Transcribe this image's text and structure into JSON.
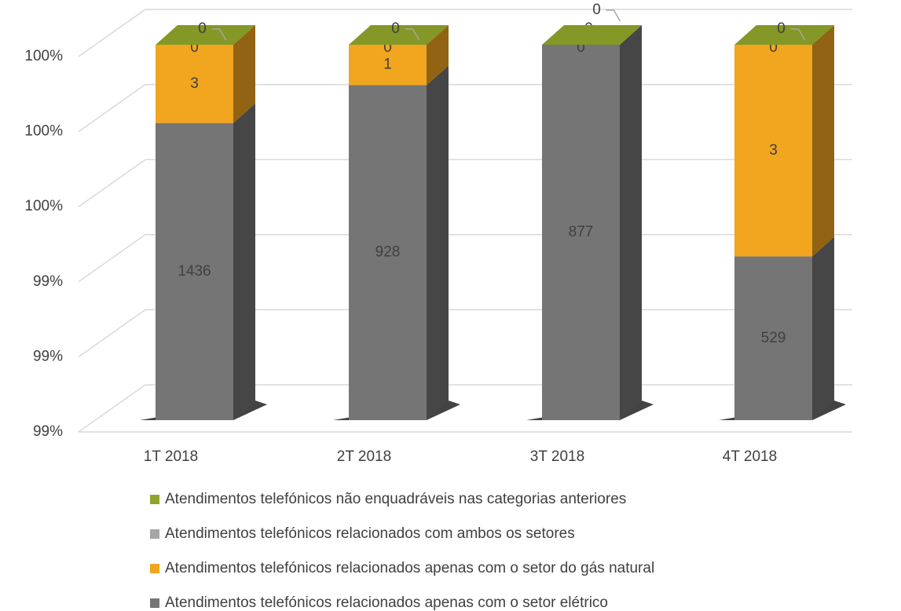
{
  "chart_data": {
    "type": "bar",
    "stacking": "percent",
    "categories": [
      "1T 2018",
      "2T 2018",
      "3T 2018",
      "4T 2018"
    ],
    "series": [
      {
        "name": "Atendimentos telefónicos relacionados apenas com o setor elétrico",
        "color": "#757575",
        "values": [
          1436,
          928,
          877,
          529
        ]
      },
      {
        "name": "Atendimentos telefónicos relacionados apenas com o setor do gás natural",
        "color": "#f2a51e",
        "values": [
          3,
          1,
          0,
          3
        ]
      },
      {
        "name": "Atendimentos telefónicos relacionados com ambos os setores",
        "color": "#a6a6a6",
        "values": [
          0,
          0,
          0,
          0
        ]
      },
      {
        "name": "Atendimentos telefónicos não enquadráveis nas categorias anteriores",
        "color": "#8fa52b",
        "values": [
          0,
          0,
          0,
          0
        ]
      }
    ],
    "ylim": [
      99,
      100
    ],
    "yticks": [
      {
        "value": 99,
        "label": "99%"
      },
      {
        "value": 99.2,
        "label": "99%"
      },
      {
        "value": 99.4,
        "label": "99%"
      },
      {
        "value": 99.6,
        "label": "100%"
      },
      {
        "value": 99.8,
        "label": "100%"
      },
      {
        "value": 100,
        "label": "100%"
      }
    ],
    "grid": true
  }
}
